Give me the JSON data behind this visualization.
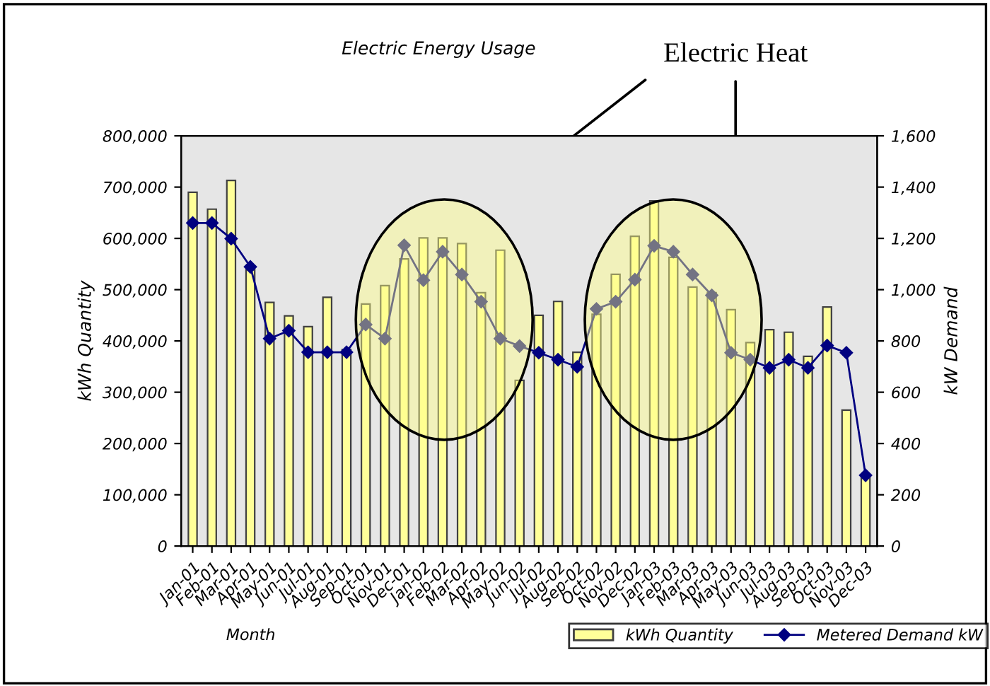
{
  "chart_data": {
    "type": "bar",
    "title": "Electric Energy Usage",
    "xlabel": "Month",
    "ylabel": "kWh Quantity",
    "y2label": "kW Demand",
    "categories": [
      "Jan-01",
      "Feb-01",
      "Mar-01",
      "Apr-01",
      "May-01",
      "Jun-01",
      "Jul-01",
      "Aug-01",
      "Sep-01",
      "Oct-01",
      "Nov-01",
      "Dec-01",
      "Jan-02",
      "Feb-02",
      "Mar-02",
      "Apr-02",
      "May-02",
      "Jun-02",
      "Jul-02",
      "Aug-02",
      "Sep-02",
      "Oct-02",
      "Nov-02",
      "Dec-02",
      "Jan-03",
      "Feb-03",
      "Mar-03",
      "Apr-03",
      "May-03",
      "Jun-03",
      "Jul-03",
      "Aug-03",
      "Sep-03",
      "Oct-03",
      "Nov-03",
      "Dec-03"
    ],
    "series": [
      {
        "name": "kWh Quantity",
        "color": "#ffff99",
        "values": [
          690000,
          657000,
          713000,
          539000,
          475000,
          449000,
          428000,
          485000,
          383000,
          472000,
          508000,
          560000,
          601000,
          601000,
          590000,
          494000,
          577000,
          323000,
          450000,
          477000,
          378000,
          452000,
          530000,
          604000,
          673000,
          563000,
          505000,
          494000,
          461000,
          397000,
          422000,
          417000,
          370000,
          466000,
          265000,
          135000
        ]
      },
      {
        "name": "Metered Demand kW",
        "type": "line",
        "axis": "y2",
        "color": "#000080",
        "marker": "diamond",
        "line_style": "solid",
        "values": [
          1260,
          1260,
          1199,
          1089,
          809,
          840,
          756,
          756,
          756,
          864,
          809,
          1173,
          1037,
          1148,
          1059,
          953,
          809,
          780,
          754,
          727,
          699,
          925,
          953,
          1039,
          1171,
          1148,
          1059,
          978,
          754,
          727,
          695,
          727,
          695,
          782,
          754,
          276
        ]
      }
    ],
    "ylim": [
      0,
      800000
    ],
    "yticks": [
      {
        "value": 0,
        "label": "0"
      },
      {
        "value": 100000,
        "label": "100,000"
      },
      {
        "value": 200000,
        "label": "200,000"
      },
      {
        "value": 300000,
        "label": "300,000"
      },
      {
        "value": 400000,
        "label": "400,000"
      },
      {
        "value": 500000,
        "label": "500,000"
      },
      {
        "value": 600000,
        "label": "600,000"
      },
      {
        "value": 700000,
        "label": "700,000"
      },
      {
        "value": 800000,
        "label": "800,000"
      }
    ],
    "y2lim": [
      0,
      1600
    ],
    "y2ticks": [
      0,
      200,
      400,
      600,
      {
        "value": 800,
        "label": "800"
      },
      {
        "value": 1000,
        "label": "1,000"
      },
      {
        "value": 1200,
        "label": "1,200"
      },
      {
        "value": 1400,
        "label": "1,400"
      },
      {
        "value": 1600,
        "label": "1,600"
      }
    ],
    "annotations": [
      "Electric Heat"
    ],
    "grid": false,
    "legend": "bottom right"
  }
}
